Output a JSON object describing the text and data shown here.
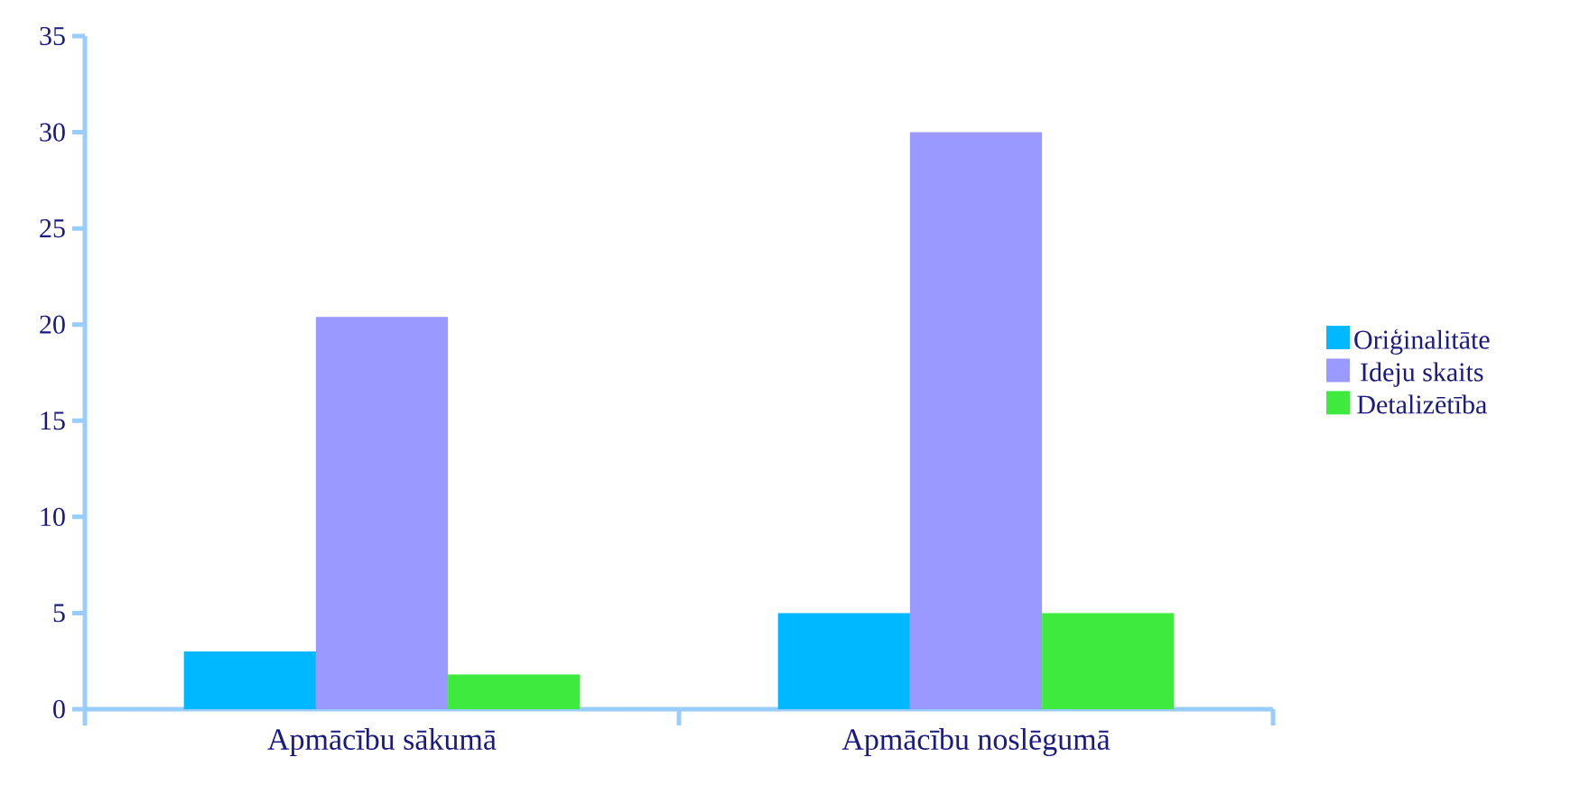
{
  "chart_data": {
    "type": "bar",
    "categories": [
      "Apmācību sākumā",
      "Apmācību noslēgumā"
    ],
    "series": [
      {
        "name": "Oriģinalitāte",
        "color": "#00b8ff",
        "values": [
          3,
          5
        ]
      },
      {
        "name": "Ideju skaits",
        "color": "#9999ff",
        "values": [
          20.4,
          30
        ]
      },
      {
        "name": "Detalizētība",
        "color": "#3dea3d",
        "values": [
          1.8,
          5
        ]
      }
    ],
    "ylim": [
      0,
      35
    ],
    "yticks": [
      0,
      5,
      10,
      15,
      20,
      25,
      30,
      35
    ],
    "legend": "right"
  }
}
